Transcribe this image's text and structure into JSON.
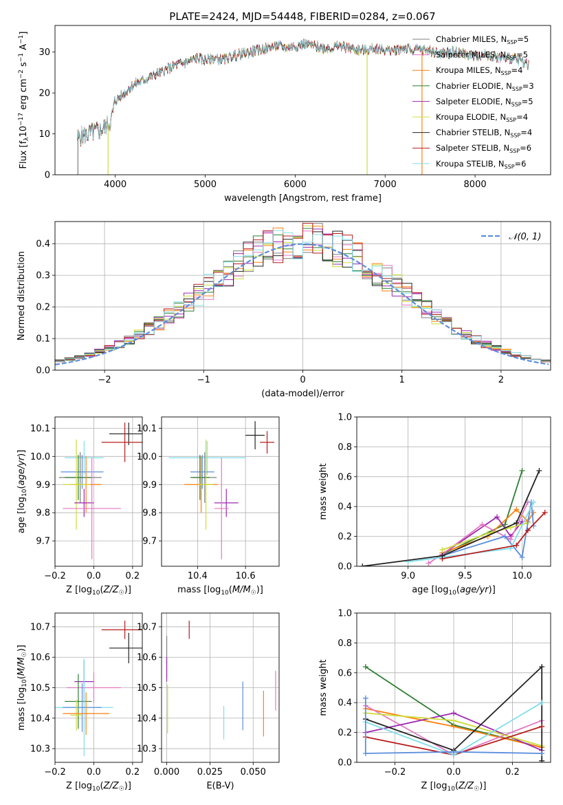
{
  "figure_title": "PLATE=2424, MJD=54448, FIBERID=0284, z=0.067",
  "colors": {
    "chabrier_miles": "#7f7f7f",
    "salpeter_miles": "#e377c2",
    "kroupa_miles": "#ff7f0e",
    "chabrier_elodie": "#2e7d32",
    "salpeter_elodie": "#9c27b0",
    "kroupa_elodie": "#cddc39",
    "chabrier_stelib": "#222222",
    "salpeter_stelib": "#b71c1c",
    "kroupa_stelib": "#80deea",
    "gaussian": "#5b8ede",
    "blue_extra": "#5b8ede"
  },
  "chart_data": [
    {
      "id": "spectrum",
      "type": "line",
      "title": "",
      "xlabel": "wavelength [Angstrom, rest frame]",
      "ylabel": "Flux [f_λ 10^-17 erg cm^-2 s^-1 A^-1]",
      "xlim": [
        3330,
        8840
      ],
      "ylim": [
        0,
        36.5
      ],
      "xticks": [
        "4000",
        "5000",
        "6000",
        "7000",
        "8000"
      ],
      "yticks": [
        "0",
        "10",
        "20",
        "30"
      ],
      "grid": false,
      "legend_position": "right",
      "legend": [
        {
          "name": "Chabrier MILES, N_SSP=5",
          "base": "Chabrier MILES, N",
          "n": "5",
          "color_key": "chabrier_miles"
        },
        {
          "name": "Salpeter MILES, N_SSP=5",
          "base": "Salpeter MILES, N",
          "n": "5",
          "color_key": "salpeter_miles"
        },
        {
          "name": "Kroupa MILES, N_SSP=4",
          "base": "Kroupa MILES, N",
          "n": "4",
          "color_key": "kroupa_miles"
        },
        {
          "name": "Chabrier ELODIE, N_SSP=3",
          "base": "Chabrier ELODIE, N",
          "n": "3",
          "color_key": "chabrier_elodie"
        },
        {
          "name": "Salpeter ELODIE, N_SSP=5",
          "base": "Salpeter ELODIE, N",
          "n": "5",
          "color_key": "salpeter_elodie"
        },
        {
          "name": "Kroupa ELODIE, N_SSP=4",
          "base": "Kroupa ELODIE, N",
          "n": "4",
          "color_key": "kroupa_elodie"
        },
        {
          "name": "Chabrier STELIB, N_SSP=4",
          "base": "Chabrier STELIB, N",
          "n": "4",
          "color_key": "chabrier_stelib"
        },
        {
          "name": "Salpeter STELIB, N_SSP=6",
          "base": "Salpeter STELIB, N",
          "n": "6",
          "color_key": "salpeter_stelib"
        },
        {
          "name": "Kroupa STELIB, N_SSP=6",
          "base": "Kroupa STELIB, N",
          "n": "6",
          "color_key": "kroupa_stelib"
        }
      ],
      "continuum": {
        "x": [
          3580,
          3700,
          3850,
          3950,
          4000,
          4100,
          4200,
          4300,
          4400,
          4500,
          4600,
          4700,
          4800,
          4900,
          5000,
          5100,
          5200,
          5300,
          5400,
          5500,
          5600,
          5700,
          5800,
          5900,
          6000,
          6100,
          6200,
          6300,
          6400,
          6500,
          6600,
          6700,
          6800,
          6900,
          7000,
          7100,
          7200,
          7300,
          7400,
          7500,
          7600,
          7700,
          7800,
          7900,
          8000,
          8100,
          8200,
          8300,
          8400,
          8500,
          8600
        ],
        "y": [
          9,
          10,
          11,
          13,
          18,
          20,
          22,
          23,
          24,
          25,
          26,
          27,
          27.5,
          28.5,
          28,
          28.5,
          28,
          29,
          29.5,
          30,
          30.5,
          31,
          31.5,
          31,
          31.5,
          32,
          31.5,
          31,
          31,
          31.5,
          31,
          30.5,
          30.5,
          31,
          30.5,
          30.5,
          31,
          30.5,
          30.5,
          30.5,
          29.5,
          30,
          30,
          29.5,
          29,
          29.5,
          29,
          28.5,
          28.5,
          28,
          27
        ]
      },
      "dropouts": [
        {
          "x": 3585,
          "color_key": "chabrier_miles"
        },
        {
          "x": 3920,
          "color_key": "kroupa_elodie"
        },
        {
          "x": 6800,
          "color_key": "kroupa_elodie"
        },
        {
          "x": 7410,
          "color_key": "kroupa_miles"
        }
      ]
    },
    {
      "id": "residual_hist",
      "type": "step",
      "title": "",
      "xlabel": "(data-model)/error",
      "ylabel": "Normed distribution",
      "xlim": [
        -2.5,
        2.5
      ],
      "ylim": [
        0,
        0.47
      ],
      "xticks": [
        "−2",
        "−1",
        "0",
        "1",
        "2"
      ],
      "yticks": [
        "0.0",
        "0.1",
        "0.2",
        "0.3",
        "0.4"
      ],
      "grid": true,
      "legend_position": "top-right",
      "legend": [
        {
          "name": "𝒩(0, 1)",
          "color_key": "gaussian"
        }
      ],
      "gaussian": {
        "mean": 0,
        "sigma": 1
      }
    },
    {
      "id": "age_vs_Z",
      "type": "errorbar",
      "xlabel": "Z [log10(Z/Z☉)]",
      "ylabel": "age  [log10(age/yr)]",
      "xlim": [
        -0.2,
        0.25
      ],
      "ylim": [
        9.61,
        10.14
      ],
      "xticks": [
        "−0.2",
        "0.0",
        "0.2"
      ],
      "yticks": [
        "9.7",
        "9.8",
        "9.9",
        "10.0",
        "10.1"
      ],
      "grid": true,
      "points": [
        {
          "color_key": "chabrier_stelib",
          "x": 0.18,
          "y": 10.08,
          "xerr": 0.1,
          "yerr": 0.04
        },
        {
          "color_key": "salpeter_stelib",
          "x": 0.16,
          "y": 10.05,
          "xerr": 0.12,
          "yerr": 0.07
        },
        {
          "color_key": "kroupa_stelib",
          "x": -0.05,
          "y": 9.995,
          "xerr": 0.1,
          "yerr": 0.06
        },
        {
          "color_key": "gaussian",
          "x": -0.06,
          "y": 9.945,
          "xerr": 0.11,
          "yerr": 0.06
        },
        {
          "color_key": "chabrier_miles",
          "x": -0.07,
          "y": 9.925,
          "xerr": 0.11,
          "yerr": 0.09
        },
        {
          "color_key": "chabrier_elodie",
          "x": -0.08,
          "y": 9.925,
          "xerr": 0.07,
          "yerr": 0.08
        },
        {
          "color_key": "kroupa_miles",
          "x": -0.04,
          "y": 9.9,
          "xerr": 0.08,
          "yerr": 0.1
        },
        {
          "color_key": "kroupa_elodie",
          "x": -0.09,
          "y": 9.9,
          "xerr": 0.07,
          "yerr": 0.16
        },
        {
          "color_key": "salpeter_elodie",
          "x": -0.05,
          "y": 9.835,
          "xerr": 0.05,
          "yerr": 0.05
        },
        {
          "color_key": "salpeter_miles",
          "x": -0.01,
          "y": 9.815,
          "xerr": 0.15,
          "yerr": 0.18
        }
      ]
    },
    {
      "id": "age_vs_mass",
      "type": "errorbar",
      "xlabel": "mass [log10(M/M☉)]",
      "ylabel": "",
      "xlim": [
        10.25,
        10.74
      ],
      "ylim": [
        9.61,
        10.14
      ],
      "xticks": [
        "10.4",
        "10.6"
      ],
      "yticks": [
        "9.7",
        "9.8",
        "9.9",
        "10.0",
        "10.1"
      ],
      "grid": true,
      "points": [
        {
          "color_key": "chabrier_stelib",
          "x": 10.64,
          "y": 10.075,
          "xerr": 0.04,
          "yerr": 0.05
        },
        {
          "color_key": "salpeter_stelib",
          "x": 10.69,
          "y": 10.05,
          "xerr": 0.03,
          "yerr": 0.04
        },
        {
          "color_key": "kroupa_stelib",
          "x": 10.44,
          "y": 9.995,
          "xerr": 0.16,
          "yerr": 0.06
        },
        {
          "color_key": "gaussian",
          "x": 10.42,
          "y": 9.945,
          "xerr": 0.05,
          "yerr": 0.06
        },
        {
          "color_key": "chabrier_miles",
          "x": 10.43,
          "y": 9.925,
          "xerr": 0.05,
          "yerr": 0.09
        },
        {
          "color_key": "chabrier_elodie",
          "x": 10.41,
          "y": 9.925,
          "xerr": 0.04,
          "yerr": 0.08
        },
        {
          "color_key": "kroupa_miles",
          "x": 10.415,
          "y": 9.9,
          "xerr": 0.07,
          "yerr": 0.1
        },
        {
          "color_key": "kroupa_elodie",
          "x": 10.435,
          "y": 9.9,
          "xerr": 0.03,
          "yerr": 0.16
        },
        {
          "color_key": "salpeter_elodie",
          "x": 10.52,
          "y": 9.835,
          "xerr": 0.05,
          "yerr": 0.05
        },
        {
          "color_key": "salpeter_miles",
          "x": 10.5,
          "y": 9.815,
          "xerr": 0.03,
          "yerr": 0.18
        }
      ]
    },
    {
      "id": "massweight_vs_age",
      "type": "line",
      "xlabel": "age  [log10(age/yr)]",
      "ylabel": "mass weight",
      "xlim": [
        8.55,
        10.25
      ],
      "ylim": [
        0,
        1.0
      ],
      "xticks": [
        "9.0",
        "9.5",
        "10.0"
      ],
      "yticks": [
        "0.0",
        "0.2",
        "0.4",
        "0.6",
        "0.8",
        "1.0"
      ],
      "grid": true,
      "series": [
        {
          "color_key": "chabrier_elodie",
          "x": [
            9.3,
            9.85,
            10.0
          ],
          "y": [
            0.08,
            0.28,
            0.64
          ]
        },
        {
          "color_key": "kroupa_miles",
          "x": [
            9.3,
            9.7,
            9.95,
            10.05,
            10.1
          ],
          "y": [
            0.09,
            0.2,
            0.38,
            0.3,
            0.36
          ]
        },
        {
          "color_key": "salpeter_elodie",
          "x": [
            9.3,
            9.78,
            9.9,
            10.0
          ],
          "y": [
            0.08,
            0.33,
            0.2,
            0.3
          ]
        },
        {
          "color_key": "salpeter_miles",
          "x": [
            9.18,
            9.3,
            9.65,
            9.9,
            10.05
          ],
          "y": [
            0.02,
            0.08,
            0.28,
            0.18,
            0.43
          ]
        },
        {
          "color_key": "kroupa_elodie",
          "x": [
            9.3,
            9.7,
            9.9,
            10.05
          ],
          "y": [
            0.11,
            0.22,
            0.26,
            0.29
          ]
        },
        {
          "color_key": "gaussian",
          "x": [
            9.3,
            9.85,
            10.0,
            10.08,
            10.1
          ],
          "y": [
            0.07,
            0.2,
            0.06,
            0.43,
            0.27
          ]
        },
        {
          "color_key": "kroupa_stelib",
          "x": [
            9.0,
            9.5,
            9.9,
            10.1
          ],
          "y": [
            0.03,
            0.08,
            0.12,
            0.43
          ]
        },
        {
          "color_key": "salpeter_stelib",
          "x": [
            9.3,
            9.95,
            10.05,
            10.2
          ],
          "y": [
            0.05,
            0.14,
            0.24,
            0.36
          ]
        },
        {
          "color_key": "chabrier_stelib",
          "x": [
            8.6,
            9.3,
            9.95,
            10.15
          ],
          "y": [
            0.0,
            0.07,
            0.29,
            0.64
          ]
        }
      ]
    },
    {
      "id": "mass_vs_Z",
      "type": "errorbar",
      "xlabel": "Z [log10(Z/Z☉)]",
      "ylabel": "mass [log10(M/M☉)]",
      "xlim": [
        -0.2,
        0.25
      ],
      "ylim": [
        10.255,
        10.745
      ],
      "xticks": [
        "−0.2",
        "0.0",
        "0.2"
      ],
      "yticks": [
        "10.3",
        "10.4",
        "10.5",
        "10.6",
        "10.7"
      ],
      "grid": true,
      "points": [
        {
          "color_key": "salpeter_stelib",
          "x": 0.16,
          "y": 10.69,
          "xerr": 0.12,
          "yerr": 0.03
        },
        {
          "color_key": "chabrier_stelib",
          "x": 0.18,
          "y": 10.63,
          "xerr": 0.1,
          "yerr": 0.05
        },
        {
          "color_key": "salpeter_elodie",
          "x": -0.05,
          "y": 10.52,
          "xerr": 0.05,
          "yerr": 0.07
        },
        {
          "color_key": "salpeter_miles",
          "x": 0.0,
          "y": 10.5,
          "xerr": 0.14,
          "yerr": 0.05
        },
        {
          "color_key": "chabrier_elodie",
          "x": -0.08,
          "y": 10.455,
          "xerr": 0.07,
          "yerr": 0.09
        },
        {
          "color_key": "kroupa_stelib",
          "x": -0.05,
          "y": 10.435,
          "xerr": 0.15,
          "yerr": 0.16
        },
        {
          "color_key": "gaussian",
          "x": -0.06,
          "y": 10.435,
          "xerr": 0.1,
          "yerr": 0.08
        },
        {
          "color_key": "kroupa_elodie",
          "x": -0.09,
          "y": 10.41,
          "xerr": 0.03,
          "yerr": 0.05
        },
        {
          "color_key": "kroupa_miles",
          "x": -0.04,
          "y": 10.415,
          "xerr": 0.12,
          "yerr": 0.07
        }
      ]
    },
    {
      "id": "mass_vs_ebv",
      "type": "errorbar",
      "xlabel": "E(B-V)",
      "ylabel": "",
      "xlim": [
        -0.003,
        0.065
      ],
      "ylim": [
        10.255,
        10.745
      ],
      "xticks": [
        "0.000",
        "0.025",
        "0.050"
      ],
      "yticks": [
        "10.3",
        "10.4",
        "10.5",
        "10.6",
        "10.7"
      ],
      "grid": true,
      "points": [
        {
          "color_key": "salpeter_stelib",
          "x": 0.013,
          "y": 10.69,
          "xerr": 0,
          "yerr": 0.03
        },
        {
          "color_key": "chabrier_miles",
          "x": 0.0,
          "y": 10.6,
          "xerr": 0,
          "yerr": 0.07
        },
        {
          "color_key": "salpeter_elodie",
          "x": 0.0,
          "y": 10.56,
          "xerr": 0,
          "yerr": 0.04
        },
        {
          "color_key": "kroupa_elodie",
          "x": 0.0005,
          "y": 10.43,
          "xerr": 0,
          "yerr": 0.08
        },
        {
          "color_key": "gaussian",
          "x": 0.044,
          "y": 10.44,
          "xerr": 0,
          "yerr": 0.08
        },
        {
          "color_key": "kroupa_stelib",
          "x": 0.033,
          "y": 10.385,
          "xerr": 0,
          "yerr": 0.055
        },
        {
          "color_key": "kroupa_miles",
          "x": 0.056,
          "y": 10.415,
          "xerr": 0,
          "yerr": 0.075
        },
        {
          "color_key": "salpeter_miles",
          "x": 0.063,
          "y": 10.49,
          "xerr": 0,
          "yerr": 0.065
        }
      ]
    },
    {
      "id": "massweight_vs_Z",
      "type": "line",
      "xlabel": "Z [log10(Z/Z☉)]",
      "ylabel": "mass weight",
      "xlim": [
        -0.33,
        0.33
      ],
      "ylim": [
        0,
        1.0
      ],
      "xticks": [
        "−0.2",
        "0.0",
        "0.2"
      ],
      "yticks": [
        "0.0",
        "0.2",
        "0.4",
        "0.6",
        "0.8",
        "1.0"
      ],
      "grid": true,
      "series": [
        {
          "color_key": "chabrier_elodie",
          "x": [
            -0.3,
            0.0,
            0.3
          ],
          "y": [
            0.64,
            0.25,
            0.1
          ]
        },
        {
          "color_key": "kroupa_miles",
          "x": [
            -0.3,
            0.0,
            0.3
          ],
          "y": [
            0.36,
            0.24,
            0.1
          ]
        },
        {
          "color_key": "salpeter_miles",
          "x": [
            -0.3,
            0.0,
            0.3
          ],
          "y": [
            0.38,
            0.05,
            0.28
          ]
        },
        {
          "color_key": "salpeter_elodie",
          "x": [
            -0.3,
            0.0,
            0.3
          ],
          "y": [
            0.2,
            0.33,
            0.08
          ]
        },
        {
          "color_key": "kroupa_elodie",
          "x": [
            -0.3,
            0.0,
            0.3
          ],
          "y": [
            0.33,
            0.28,
            0.11
          ]
        },
        {
          "color_key": "chabrier_stelib",
          "x": [
            -0.3,
            0.0,
            0.3,
            0.3
          ],
          "y": [
            0.29,
            0.08,
            0.64,
            0.01
          ]
        },
        {
          "color_key": "salpeter_stelib",
          "x": [
            -0.3,
            0.0,
            0.3
          ],
          "y": [
            0.17,
            0.05,
            0.24
          ]
        },
        {
          "color_key": "kroupa_stelib",
          "x": [
            -0.3,
            0.0,
            0.3
          ],
          "y": [
            0.27,
            0.05,
            0.4
          ]
        },
        {
          "color_key": "gaussian",
          "x": [
            -0.3,
            -0.3,
            0.0,
            0.3
          ],
          "y": [
            0.43,
            0.06,
            0.07,
            0.06
          ]
        }
      ]
    }
  ]
}
